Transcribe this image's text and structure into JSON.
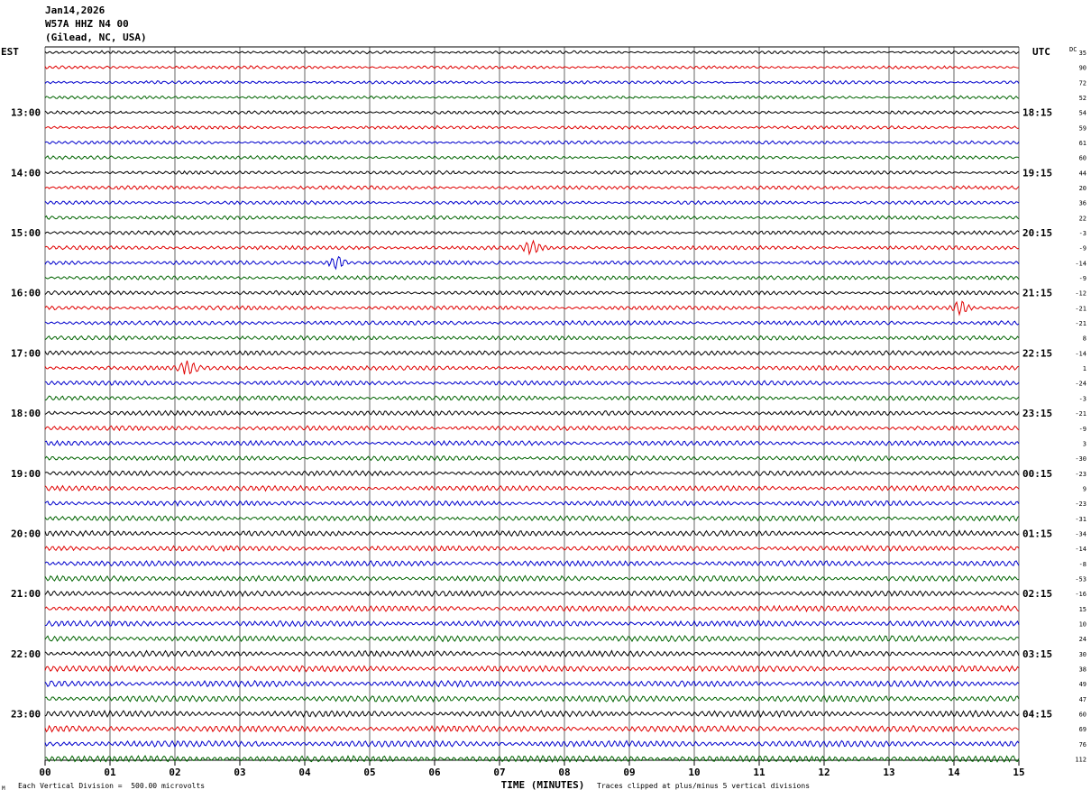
{
  "header": {
    "date": "Jan14,2026",
    "station": "W57A HHZ N4 00",
    "location": "(Gilead, NC, USA)"
  },
  "labels": {
    "left_zone": "EST",
    "right_zone": "UTC",
    "dc_header": "DC"
  },
  "footer": {
    "scale_note": "Each Vertical Division =  500.00 microvolts",
    "clip_note": "Traces clipped at plus/minus 5 vertical divisions",
    "corner_mark": "M"
  },
  "colors": {
    "trace_cycle": [
      "#000000",
      "#e00000",
      "#0000cc",
      "#006400"
    ],
    "grid": "#000000",
    "background": "#ffffff"
  },
  "chart_data": {
    "type": "line",
    "title": "W57A HHZ N4 00",
    "xlabel": "TIME (MINUTES)",
    "ylabel": "",
    "x_ticks": [
      "00",
      "01",
      "02",
      "03",
      "04",
      "05",
      "06",
      "07",
      "08",
      "09",
      "10",
      "11",
      "12",
      "13",
      "14",
      "15"
    ],
    "xlim": [
      0,
      15
    ],
    "grid": true,
    "rows": 48,
    "rows_per_hour": 4,
    "left_hour_labels": [
      "13:00",
      "14:00",
      "15:00",
      "16:00",
      "17:00",
      "18:00",
      "19:00",
      "20:00",
      "21:00",
      "22:00",
      "23:00"
    ],
    "right_hour_labels": [
      "18:15",
      "19:15",
      "20:15",
      "21:15",
      "22:15",
      "23:15",
      "00:15",
      "01:15",
      "02:15",
      "03:15",
      "04:15"
    ],
    "dc_offsets": [
      35,
      90,
      72,
      52,
      54,
      59,
      61,
      60,
      44,
      20,
      36,
      22,
      -3,
      -9,
      -14,
      -9,
      -12,
      -21,
      -21,
      8,
      -14,
      1,
      -24,
      -3,
      -21,
      -9,
      3,
      -30,
      -23,
      9,
      -23,
      -31,
      -34,
      -14,
      -8,
      -53,
      -16,
      15,
      10,
      24,
      30,
      38,
      49,
      47,
      60,
      69,
      76,
      112
    ],
    "events": [
      {
        "row": 13,
        "minute": 7.5
      },
      {
        "row": 14,
        "minute": 4.5
      },
      {
        "row": 17,
        "minute": 14.1
      },
      {
        "row": 21,
        "minute": 2.2
      }
    ]
  }
}
